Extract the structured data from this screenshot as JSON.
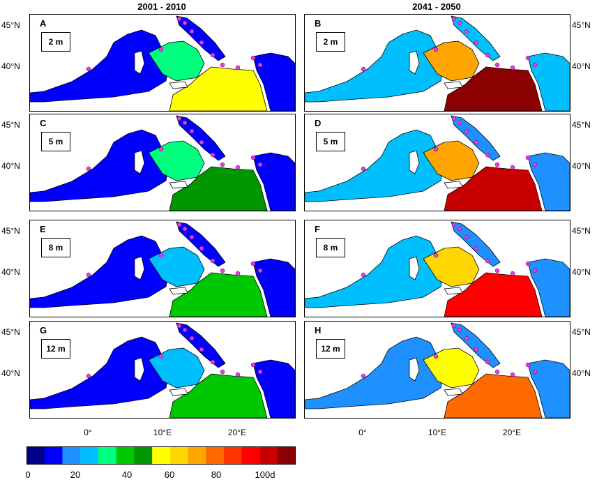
{
  "column_titles": [
    "2001 - 2010",
    "2041 - 2050"
  ],
  "panels": [
    {
      "letter": "A",
      "depth": "2 m",
      "period": "2001 - 2010",
      "level": 0.35
    },
    {
      "letter": "B",
      "depth": "2 m",
      "period": "2041 - 2050",
      "level": 0.75
    },
    {
      "letter": "C",
      "depth": "5 m",
      "period": "2001 - 2010",
      "level": 0.3
    },
    {
      "letter": "D",
      "depth": "5 m",
      "period": "2041 - 2050",
      "level": 0.68
    },
    {
      "letter": "E",
      "depth": "8 m",
      "period": "2001 - 2010",
      "level": 0.27
    },
    {
      "letter": "F",
      "depth": "8 m",
      "period": "2041 - 2050",
      "level": 0.62
    },
    {
      "letter": "G",
      "depth": "12 m",
      "period": "2001 - 2010",
      "level": 0.25
    },
    {
      "letter": "H",
      "depth": "12 m",
      "period": "2041 - 2050",
      "level": 0.55
    }
  ],
  "lat_labels": [
    "45°N",
    "40°N"
  ],
  "lon_labels": [
    "0°",
    "10°E",
    "20°E"
  ],
  "colorbar": {
    "ticks": [
      "0",
      "20",
      "40",
      "60",
      "80",
      "100d"
    ],
    "range": [
      0,
      100
    ],
    "colors": [
      "#00008b",
      "#0000ff",
      "#1e90ff",
      "#00bfff",
      "#00ff7f",
      "#00c800",
      "#009600",
      "#ffff00",
      "#ffd700",
      "#ffa500",
      "#ff6a00",
      "#ff3300",
      "#ff0000",
      "#c80000",
      "#8b0000"
    ]
  },
  "marker_color": "#e040e0",
  "chart_data": {
    "type": "heatmap",
    "title": "",
    "columns": [
      "2001 - 2010",
      "2041 - 2050"
    ],
    "rows": [
      "2 m",
      "5 m",
      "8 m",
      "12 m"
    ],
    "colorbar_ticks": [
      0,
      20,
      40,
      60,
      80,
      100
    ],
    "colorbar_unit": "d",
    "xticks": [
      "0°",
      "10°E",
      "20°E"
    ],
    "yticks": [
      "45°N",
      "40°N"
    ]
  }
}
